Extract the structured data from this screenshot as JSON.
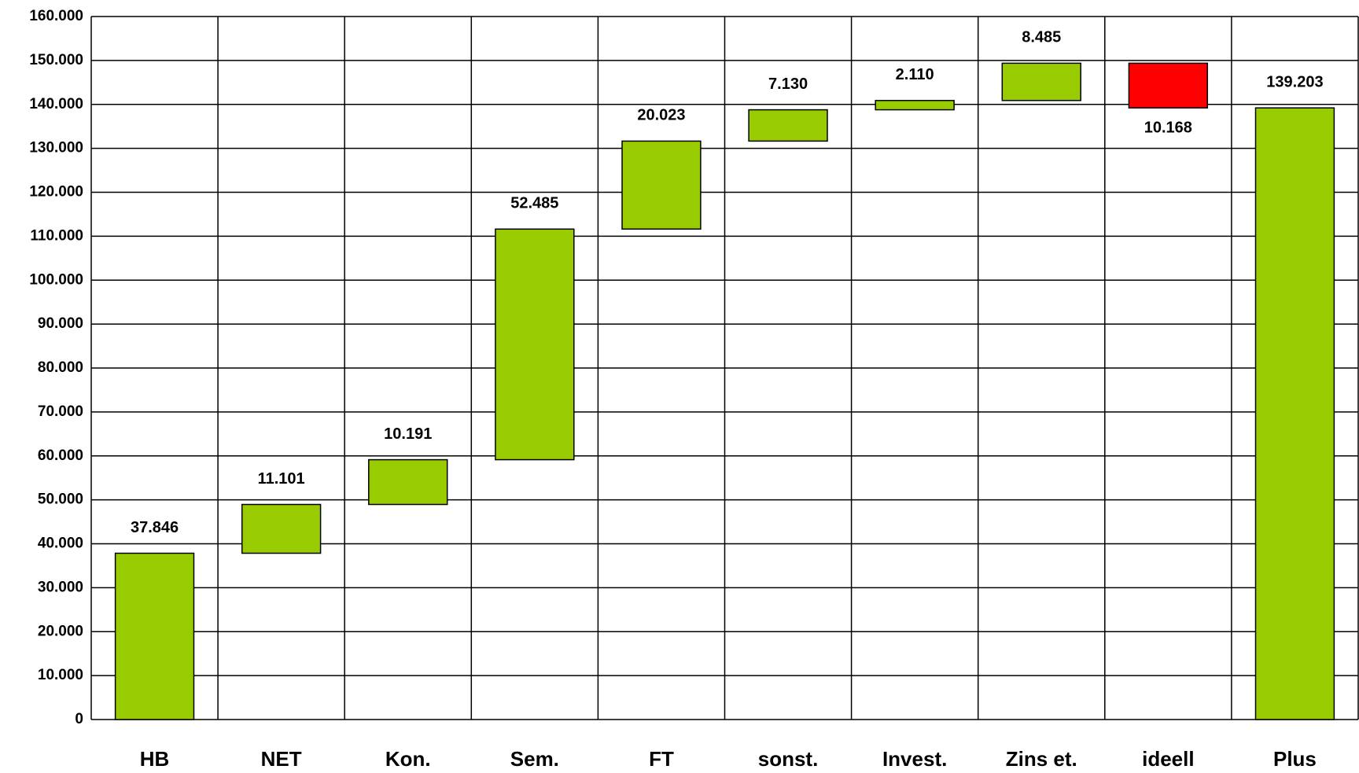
{
  "chart_data": {
    "type": "waterfall",
    "categories": [
      "HB",
      "NET",
      "Kon.",
      "Sem.",
      "FT",
      "sonst.",
      "Invest.",
      "Zins et.",
      "ideell",
      "Plus"
    ],
    "values": [
      37846,
      11101,
      10191,
      52485,
      20023,
      7130,
      2110,
      8485,
      -10168,
      139203
    ],
    "value_labels": [
      "37.846",
      "11.101",
      "10.191",
      "52.485",
      "20.023",
      "7.130",
      "2.110",
      "8.485",
      "10.168",
      "139.203"
    ],
    "measures": [
      "absolute",
      "relative",
      "relative",
      "relative",
      "relative",
      "relative",
      "relative",
      "relative",
      "relative",
      "total"
    ],
    "colors": [
      "#99cc00",
      "#99cc00",
      "#99cc00",
      "#99cc00",
      "#99cc00",
      "#99cc00",
      "#99cc00",
      "#99cc00",
      "#ff0000",
      "#99cc00"
    ],
    "ylim": [
      0,
      160000
    ],
    "yticks": [
      0,
      {
        "value": 10000,
        "label": "10.000"
      },
      {
        "value": 20000,
        "label": "20.000"
      },
      {
        "value": 30000,
        "label": "30.000"
      },
      {
        "value": 40000,
        "label": "40.000"
      },
      {
        "value": 50000,
        "label": "50.000"
      },
      {
        "value": 60000,
        "label": "60.000"
      },
      {
        "value": 70000,
        "label": "70.000"
      },
      {
        "value": 80000,
        "label": "80.000"
      },
      {
        "value": 90000,
        "label": "90.000"
      },
      {
        "value": 100000,
        "label": "100.000"
      },
      {
        "value": 110000,
        "label": "110.000"
      },
      {
        "value": 120000,
        "label": "120.000"
      },
      {
        "value": 130000,
        "label": "130.000"
      },
      {
        "value": 140000,
        "label": "140.000"
      },
      {
        "value": 150000,
        "label": "150.000"
      },
      {
        "value": 160000,
        "label": "160.000"
      }
    ],
    "grid": true
  }
}
